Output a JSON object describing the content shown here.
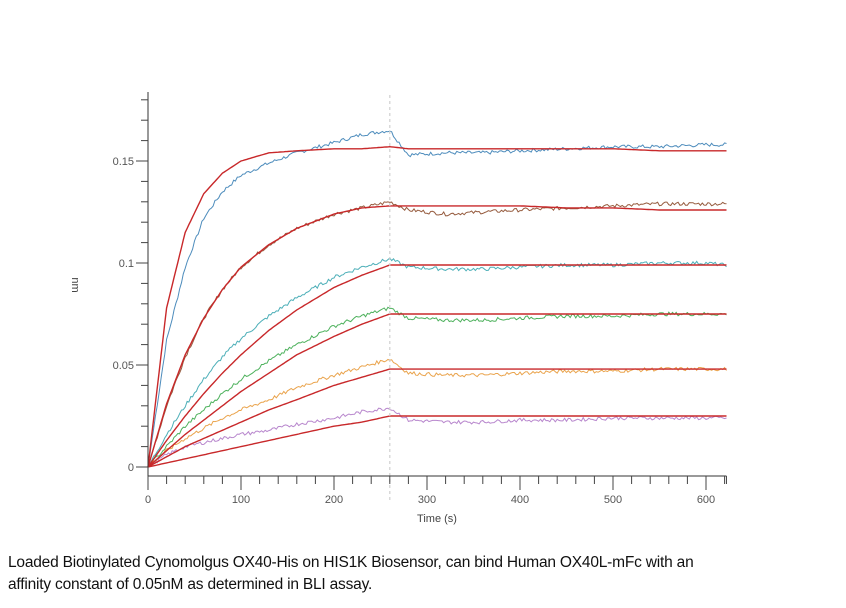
{
  "chart_data": {
    "type": "line",
    "title": "",
    "xlabel": "Time (s)",
    "ylabel": "nm",
    "xlim": [
      0,
      622
    ],
    "ylim": [
      -0.003,
      0.183
    ],
    "x_ticks": [
      0,
      100,
      200,
      300,
      400,
      500,
      600
    ],
    "x_tick_labels": [
      "0",
      "100",
      "200",
      "300",
      "400",
      "500",
      "600"
    ],
    "y_ticks": [
      0,
      0.05,
      0.1,
      0.15
    ],
    "y_tick_labels": [
      "0",
      "0.05",
      "0.1",
      "0.15"
    ],
    "grid": false,
    "legend": "none",
    "annotations": [
      {
        "type": "vertical-dashed-line",
        "x": 260,
        "label": "association/dissociation boundary"
      }
    ],
    "x": [
      0,
      20,
      40,
      60,
      80,
      100,
      130,
      160,
      200,
      230,
      260,
      280,
      320,
      360,
      400,
      450,
      500,
      550,
      600,
      620
    ],
    "series": [
      {
        "name": "Blue (raw)",
        "color": "#3a7fb5",
        "values": [
          0,
          0.062,
          0.098,
          0.122,
          0.135,
          0.143,
          0.149,
          0.154,
          0.159,
          0.163,
          0.165,
          0.153,
          0.154,
          0.154,
          0.155,
          0.156,
          0.157,
          0.157,
          0.158,
          0.158
        ]
      },
      {
        "name": "Blue fit",
        "color": "#c8282a",
        "values": [
          0,
          0.078,
          0.115,
          0.134,
          0.144,
          0.15,
          0.154,
          0.155,
          0.156,
          0.156,
          0.157,
          0.156,
          0.156,
          0.156,
          0.156,
          0.156,
          0.156,
          0.155,
          0.155,
          0.155
        ]
      },
      {
        "name": "Brown (raw)",
        "color": "#8b4a2a",
        "values": [
          0,
          0.03,
          0.054,
          0.073,
          0.087,
          0.098,
          0.109,
          0.117,
          0.124,
          0.127,
          0.13,
          0.126,
          0.124,
          0.125,
          0.126,
          0.127,
          0.128,
          0.129,
          0.129,
          0.129
        ]
      },
      {
        "name": "Brown fit",
        "color": "#c8282a",
        "values": [
          0,
          0.031,
          0.055,
          0.073,
          0.087,
          0.098,
          0.109,
          0.117,
          0.124,
          0.127,
          0.128,
          0.128,
          0.128,
          0.128,
          0.128,
          0.127,
          0.127,
          0.126,
          0.126,
          0.126
        ]
      },
      {
        "name": "Teal (raw)",
        "color": "#3aa6b0",
        "values": [
          0,
          0.016,
          0.03,
          0.043,
          0.054,
          0.063,
          0.074,
          0.083,
          0.093,
          0.098,
          0.102,
          0.098,
          0.097,
          0.097,
          0.098,
          0.099,
          0.099,
          0.1,
          0.1,
          0.099
        ]
      },
      {
        "name": "Teal fit",
        "color": "#c8282a",
        "values": [
          0,
          0.013,
          0.025,
          0.036,
          0.046,
          0.055,
          0.067,
          0.077,
          0.088,
          0.094,
          0.099,
          0.099,
          0.099,
          0.099,
          0.099,
          0.099,
          0.099,
          0.099,
          0.099,
          0.099
        ]
      },
      {
        "name": "Green (raw)",
        "color": "#3aa84a",
        "values": [
          0,
          0.01,
          0.02,
          0.028,
          0.036,
          0.043,
          0.052,
          0.06,
          0.069,
          0.074,
          0.078,
          0.073,
          0.072,
          0.072,
          0.073,
          0.074,
          0.074,
          0.075,
          0.075,
          0.075
        ]
      },
      {
        "name": "Green fit",
        "color": "#c8282a",
        "values": [
          0,
          0.008,
          0.016,
          0.023,
          0.03,
          0.037,
          0.046,
          0.055,
          0.064,
          0.07,
          0.075,
          0.075,
          0.075,
          0.075,
          0.075,
          0.075,
          0.075,
          0.075,
          0.075,
          0.075
        ]
      },
      {
        "name": "Orange (raw)",
        "color": "#e89a3a",
        "values": [
          0,
          0.008,
          0.014,
          0.019,
          0.024,
          0.028,
          0.033,
          0.039,
          0.045,
          0.049,
          0.053,
          0.046,
          0.045,
          0.045,
          0.046,
          0.047,
          0.047,
          0.048,
          0.048,
          0.048
        ]
      },
      {
        "name": "Orange fit",
        "color": "#c8282a",
        "values": [
          0,
          0.005,
          0.01,
          0.014,
          0.018,
          0.022,
          0.028,
          0.033,
          0.04,
          0.044,
          0.048,
          0.048,
          0.048,
          0.048,
          0.048,
          0.048,
          0.048,
          0.048,
          0.048,
          0.048
        ]
      },
      {
        "name": "Purple (raw)",
        "color": "#b07ac8",
        "values": [
          0,
          0.006,
          0.01,
          0.012,
          0.014,
          0.016,
          0.018,
          0.021,
          0.024,
          0.027,
          0.029,
          0.023,
          0.022,
          0.022,
          0.023,
          0.023,
          0.024,
          0.024,
          0.024,
          0.024
        ]
      },
      {
        "name": "Purple fit",
        "color": "#c8282a",
        "values": [
          0,
          0.002,
          0.004,
          0.006,
          0.008,
          0.01,
          0.013,
          0.016,
          0.02,
          0.022,
          0.025,
          0.025,
          0.025,
          0.025,
          0.025,
          0.025,
          0.025,
          0.025,
          0.025,
          0.025
        ]
      }
    ]
  },
  "caption": {
    "line1": "Loaded Biotinylated Cynomolgus OX40-His on HIS1K Biosensor, can bind Human OX40L-mFc with an",
    "line2": "affinity constant of 0.05nM as determined in BLI assay."
  },
  "colors": {
    "fit": "#c8282a",
    "axis": "#333333",
    "divider": "#d0d0d0"
  }
}
